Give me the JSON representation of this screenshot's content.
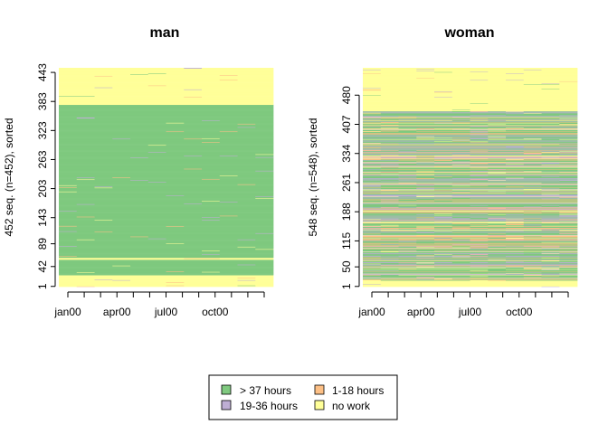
{
  "colors": {
    "gt37": "#7FC97F",
    "h19_36": "#BEAED4",
    "h1_18": "#FDC086",
    "nowork": "#FFFF99"
  },
  "chart_data": [
    {
      "type": "heatmap",
      "title": "man",
      "ylabel": "452 seq. (n=452), sorted",
      "n_sequences": 452,
      "n_months": 12,
      "y_tick_labels": [
        "1",
        "42",
        "89",
        "143",
        "203",
        "263",
        "323",
        "383",
        "443"
      ],
      "y_tick_values": [
        1,
        42,
        89,
        143,
        203,
        263,
        323,
        383,
        443
      ],
      "x_tick_labels": [
        "jan00",
        "apr00",
        "jul00",
        "oct00"
      ],
      "x_tick_months": [
        1,
        4,
        7,
        10
      ],
      "bands": [
        {
          "from": 1,
          "to": 24,
          "state": "no work"
        },
        {
          "from": 25,
          "to": 56,
          "state": "> 37 hours"
        },
        {
          "from": 57,
          "to": 60,
          "state": "no work"
        },
        {
          "from": 61,
          "to": 376,
          "state": "> 37 hours"
        },
        {
          "from": 377,
          "to": 452,
          "state": "no work"
        }
      ],
      "composition": {
        "> 37 hours": 0.66,
        "19-36 hours": 0.03,
        "1-18 hours": 0.02,
        "no work": 0.29
      }
    },
    {
      "type": "heatmap",
      "title": "woman",
      "ylabel": "548 seq. (n=548), sorted",
      "n_sequences": 548,
      "n_months": 12,
      "y_tick_labels": [
        "1",
        "50",
        "115",
        "188",
        "261",
        "334",
        "407",
        "480"
      ],
      "y_tick_values": [
        1,
        50,
        115,
        188,
        261,
        334,
        407,
        480
      ],
      "x_tick_labels": [
        "jan00",
        "apr00",
        "jul00",
        "oct00"
      ],
      "x_tick_months": [
        1,
        4,
        7,
        10
      ],
      "bands": [
        {
          "from": 1,
          "to": 14,
          "state": "no work"
        },
        {
          "from": 15,
          "to": 110,
          "state": "mixed"
        },
        {
          "from": 111,
          "to": 440,
          "state": "mixed"
        },
        {
          "from": 441,
          "to": 548,
          "state": "no work"
        }
      ],
      "composition": {
        "> 37 hours": 0.4,
        "19-36 hours": 0.16,
        "1-18 hours": 0.13,
        "no work": 0.31
      }
    }
  ],
  "legend": {
    "items": [
      {
        "label": "> 37 hours",
        "color_key": "gt37"
      },
      {
        "label": "19-36 hours",
        "color_key": "h19_36"
      },
      {
        "label": "1-18 hours",
        "color_key": "h1_18"
      },
      {
        "label": "no work",
        "color_key": "nowork"
      }
    ]
  }
}
